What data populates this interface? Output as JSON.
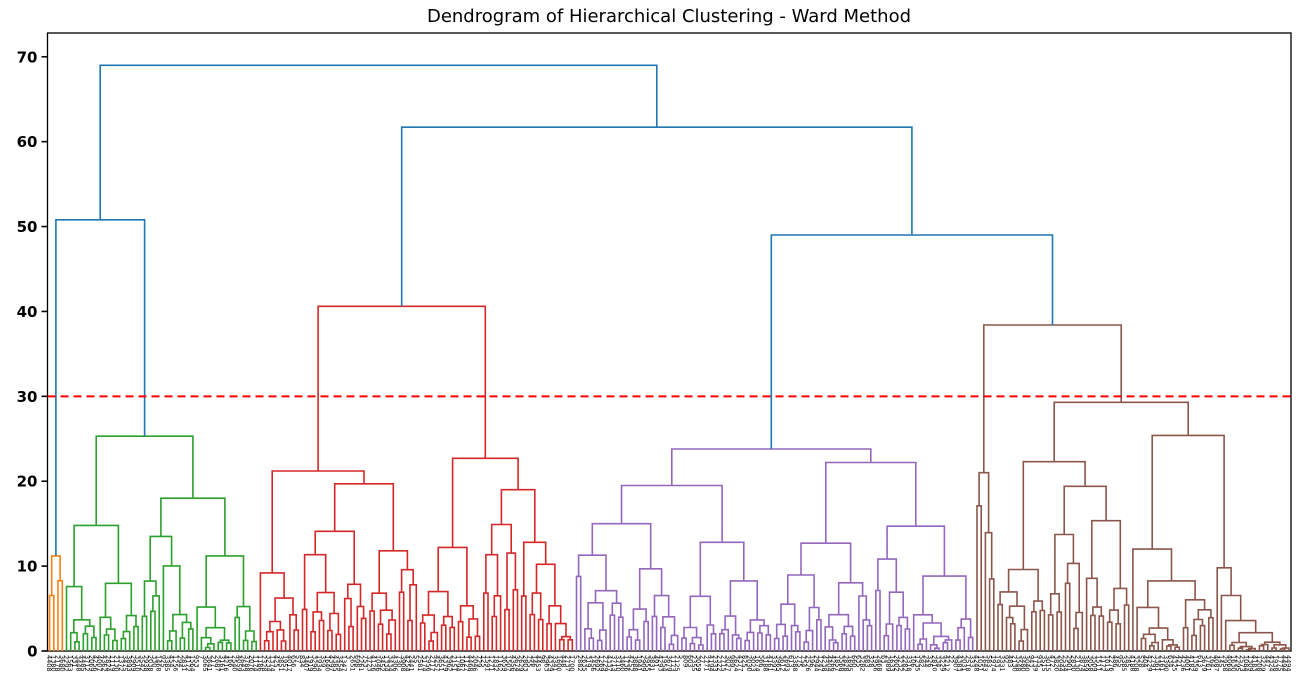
{
  "figure": {
    "background": "#ffffff"
  },
  "chart_data": {
    "type": "dendrogram",
    "title": "Dendrogram of Hierarchical Clustering - Ward Method",
    "method": "Ward",
    "xlabel": "",
    "ylabel": "",
    "ylim": [
      0,
      72.8
    ],
    "yticks": [
      0,
      10,
      20,
      30,
      40,
      50,
      60,
      70
    ],
    "xtick_labels_legible": false,
    "n_leaves_estimate": 295,
    "grid": false,
    "threshold_line": {
      "y": 30,
      "color": "#ff0000",
      "style": "dashed"
    },
    "colors": {
      "blue": "#1f77b4",
      "orange": "#ff7f0e",
      "green": "#2ca02c",
      "red": "#d62728",
      "purple": "#9467bd",
      "brown": "#8c564b"
    },
    "clusters": [
      {
        "color": "orange",
        "top_merge_height": 11.2,
        "approx_leaves": 4
      },
      {
        "color": "green",
        "top_merge_height": 25.3,
        "approx_leaves": 46
      },
      {
        "color": "red",
        "top_merge_height": 40.6,
        "approx_leaves": 75
      },
      {
        "color": "purple",
        "top_merge_height": 23.8,
        "approx_leaves": 95
      },
      {
        "color": "brown",
        "top_merge_height": 38.4,
        "approx_leaves": 75
      }
    ],
    "tree": {
      "h": 69.0,
      "color": "blue",
      "children": [
        {
          "h": 50.8,
          "color": "blue",
          "children": [
            {
              "h": 11.2,
              "color": "orange",
              "leaves": 4,
              "seed": 11
            },
            {
              "h": 25.3,
              "color": "green",
              "children": [
                {
                  "h": 14.8,
                  "color": "green",
                  "leaves": 18,
                  "seed": 21
                },
                {
                  "h": 18.0,
                  "color": "green",
                  "children": [
                    {
                      "h": 13.5,
                      "color": "green",
                      "leaves": 13,
                      "seed": 22
                    },
                    {
                      "h": 11.2,
                      "color": "green",
                      "leaves": 15,
                      "seed": 23
                    }
                  ]
                }
              ]
            }
          ]
        },
        {
          "h": 61.7,
          "color": "blue",
          "children": [
            {
              "h": 40.6,
              "color": "red",
              "children": [
                {
                  "h": 21.2,
                  "color": "red",
                  "children": [
                    {
                      "h": 9.2,
                      "color": "red",
                      "leaves": 10,
                      "seed": 31
                    },
                    {
                      "h": 19.7,
                      "color": "red",
                      "children": [
                        {
                          "h": 14.1,
                          "color": "red",
                          "leaves": 16,
                          "seed": 32
                        },
                        {
                          "h": 11.8,
                          "color": "red",
                          "leaves": 12,
                          "seed": 33
                        }
                      ]
                    }
                  ]
                },
                {
                  "h": 22.7,
                  "color": "red",
                  "children": [
                    {
                      "h": 12.2,
                      "color": "red",
                      "leaves": 15,
                      "seed": 34
                    },
                    {
                      "h": 19.0,
                      "color": "red",
                      "leaves": 22,
                      "seed": 35
                    }
                  ]
                }
              ]
            },
            {
              "h": 49.0,
              "color": "blue",
              "children": [
                {
                  "h": 23.8,
                  "color": "purple",
                  "children": [
                    {
                      "h": 19.5,
                      "color": "purple",
                      "children": [
                        {
                          "h": 15.0,
                          "color": "purple",
                          "leaves": 25,
                          "seed": 41
                        },
                        {
                          "h": 12.8,
                          "color": "purple",
                          "leaves": 22,
                          "seed": 42
                        }
                      ]
                    },
                    {
                      "h": 22.2,
                      "color": "purple",
                      "children": [
                        {
                          "h": 12.7,
                          "color": "purple",
                          "leaves": 24,
                          "seed": 43
                        },
                        {
                          "h": 14.7,
                          "color": "purple",
                          "leaves": 24,
                          "seed": 44
                        }
                      ]
                    }
                  ]
                },
                {
                  "h": 38.4,
                  "color": "brown",
                  "children": [
                    {
                      "h": 21.0,
                      "color": "brown",
                      "leaves": 5,
                      "seed": 51
                    },
                    {
                      "h": 29.3,
                      "color": "brown",
                      "children": [
                        {
                          "h": 22.3,
                          "color": "brown",
                          "children": [
                            {
                              "h": 9.6,
                              "color": "brown",
                              "leaves": 12,
                              "seed": 52
                            },
                            {
                              "h": 19.4,
                              "color": "brown",
                              "leaves": 20,
                              "seed": 53
                            }
                          ]
                        },
                        {
                          "h": 25.4,
                          "color": "brown",
                          "children": [
                            {
                              "h": 12.0,
                              "color": "brown",
                              "leaves": 20,
                              "seed": 54
                            },
                            {
                              "h": 9.8,
                              "color": "brown",
                              "leaves": 18,
                              "seed": 55
                            }
                          ]
                        }
                      ]
                    }
                  ]
                }
              ]
            }
          ]
        }
      ]
    }
  }
}
